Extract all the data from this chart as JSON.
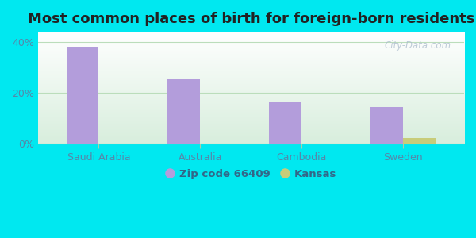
{
  "title": "Most common places of birth for foreign-born residents",
  "categories": [
    "Saudi Arabia",
    "Australia",
    "Cambodia",
    "Sweden"
  ],
  "zip_values": [
    38.0,
    25.5,
    16.5,
    14.5
  ],
  "kansas_values": [
    0.0,
    0.0,
    0.0,
    2.2
  ],
  "zip_color": "#b39ddb",
  "kansas_color": "#c8cc7a",
  "bar_width": 0.32,
  "ylim": [
    0,
    44
  ],
  "yticks": [
    0,
    20,
    40
  ],
  "yticklabels": [
    "0%",
    "20%",
    "40%"
  ],
  "outer_bg": "#00e8f0",
  "title_fontsize": 13,
  "legend_zip_label": "Zip code 66409",
  "legend_kansas_label": "Kansas",
  "watermark": "City-Data.com",
  "tick_label_color": "#5588aa",
  "bg_top_color": "#ffffff",
  "bg_bottom_color": "#d8eedd"
}
